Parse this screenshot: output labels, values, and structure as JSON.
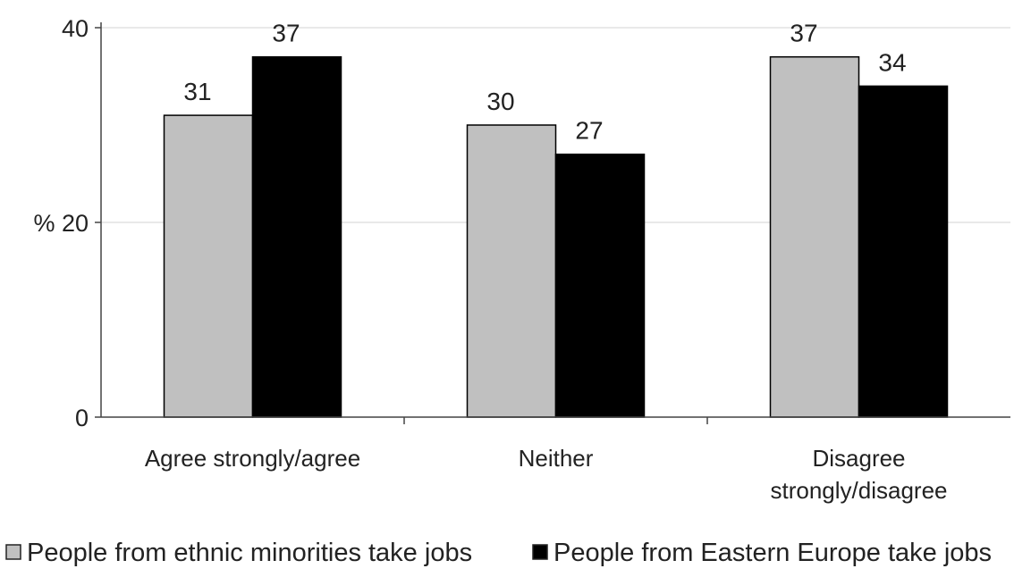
{
  "chart_data": {
    "type": "bar",
    "categories": [
      [
        "Agree strongly/agree"
      ],
      [
        "Neither"
      ],
      [
        "Disagree",
        "strongly/disagree"
      ]
    ],
    "series": [
      {
        "name": "People from ethnic minorities take jobs",
        "values": [
          31,
          30,
          37
        ],
        "color": "#c0c0c0"
      },
      {
        "name": "People from Eastern Europe take jobs",
        "values": [
          37,
          27,
          34
        ],
        "color": "#000000"
      }
    ],
    "y_ticks": [
      {
        "value": 0,
        "label": "0"
      },
      {
        "value": 20,
        "label": "% 20"
      },
      {
        "value": 40,
        "label": "40"
      }
    ],
    "ylim": [
      0,
      40
    ],
    "grid": true,
    "legend_placement": "bottom",
    "title": "",
    "xlabel": "",
    "ylabel": ""
  }
}
